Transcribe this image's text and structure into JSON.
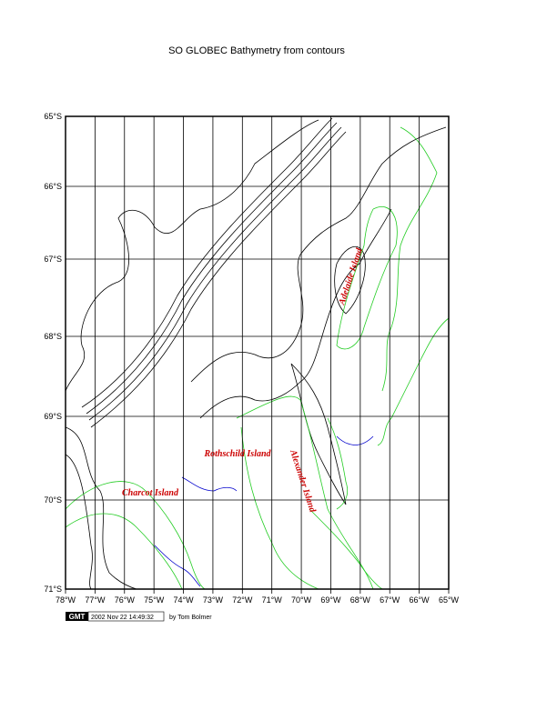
{
  "title": "SO GLOBEC Bathymetry from contours",
  "map": {
    "lat_labels": [
      "65°S",
      "66°S",
      "67°S",
      "68°S",
      "69°S",
      "70°S",
      "71°S"
    ],
    "lon_labels": [
      "78°W",
      "77°W",
      "76°W",
      "75°W",
      "74°W",
      "73°W",
      "72°W",
      "71°W",
      "70°W",
      "69°W",
      "68°W",
      "67°W",
      "66°W",
      "65°W"
    ],
    "place_labels": [
      "Adelaide Island",
      "Rothschild Island",
      "Charcot Island",
      "Alexander Island"
    ]
  },
  "footer": {
    "logo": "GMT",
    "timestamp": "2002 Nov 22 14:49:32",
    "credit": "by Tom Bolmer"
  }
}
